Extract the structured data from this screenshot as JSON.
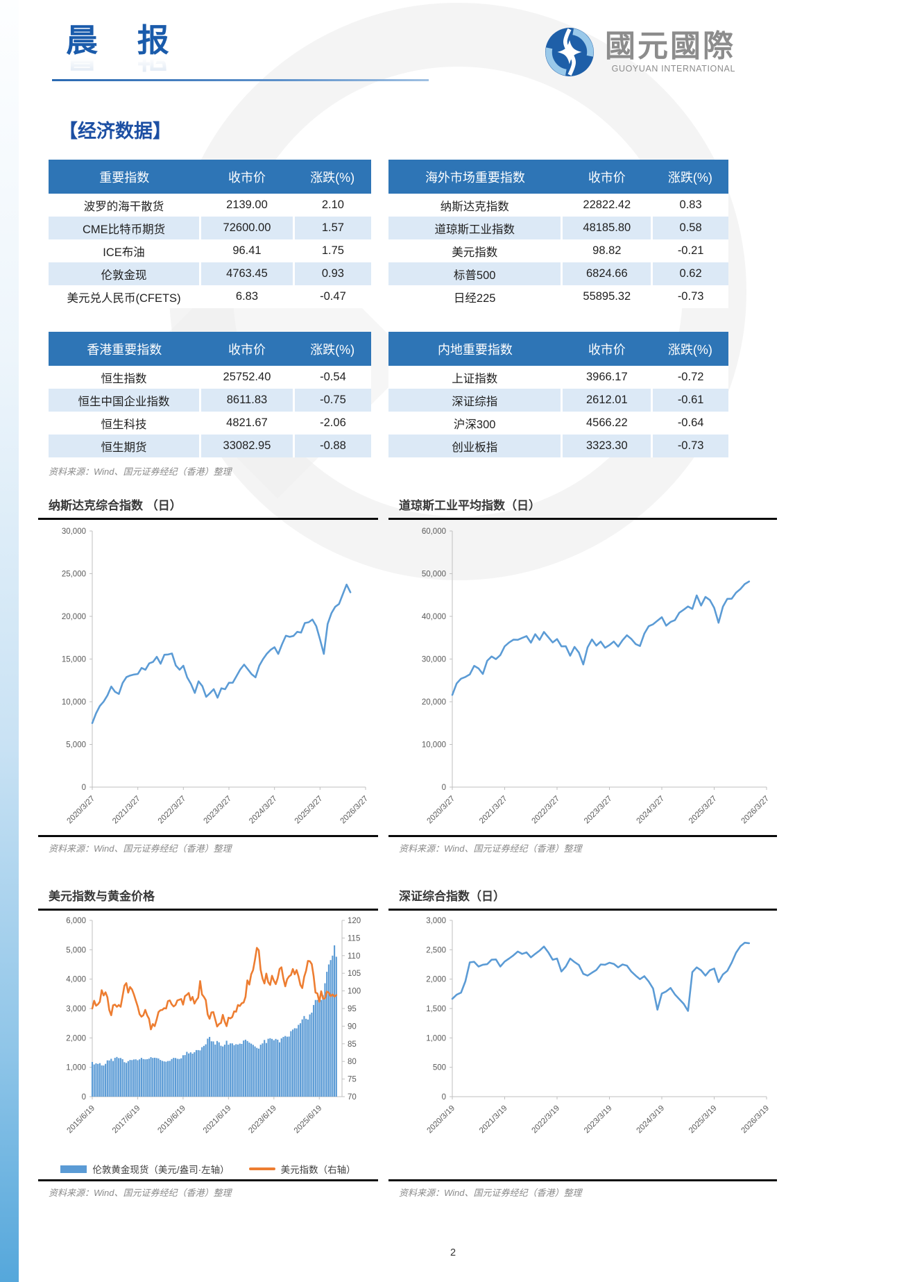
{
  "page_number": "2",
  "header": {
    "title": "晨 报",
    "brand_cn": "國元國際",
    "brand_en": "GUOYUAN INTERNATIONAL"
  },
  "section_title": "【经济数据】",
  "source_note": "资料来源：Wind、国元证券经纪（香港）整理",
  "colors": {
    "table_header": "#2E75B6",
    "table_row_alt": "#DCE9F6",
    "line_blue": "#5B9BD5",
    "line_orange": "#ED7D31",
    "accent_blue": "#1A5BAB"
  },
  "tables": [
    {
      "name": "important-indices",
      "headers": [
        "重要指数",
        "收市价",
        "涨跌(%)"
      ],
      "rows": [
        [
          "波罗的海干散货",
          "2139.00",
          "2.10"
        ],
        [
          "CME比特币期货",
          "72600.00",
          "1.57"
        ],
        [
          "ICE布油",
          "96.41",
          "1.75"
        ],
        [
          "伦敦金现",
          "4763.45",
          "0.93"
        ],
        [
          "美元兑人民币(CFETS)",
          "6.83",
          "-0.47"
        ]
      ]
    },
    {
      "name": "overseas-indices",
      "headers": [
        "海外市场重要指数",
        "收市价",
        "涨跌(%)"
      ],
      "rows": [
        [
          "纳斯达克指数",
          "22822.42",
          "0.83"
        ],
        [
          "道琼斯工业指数",
          "48185.80",
          "0.58"
        ],
        [
          "美元指数",
          "98.82",
          "-0.21"
        ],
        [
          "标普500",
          "6824.66",
          "0.62"
        ],
        [
          "日经225",
          "55895.32",
          "-0.73"
        ]
      ]
    },
    {
      "name": "hk-indices",
      "headers": [
        "香港重要指数",
        "收市价",
        "涨跌(%)"
      ],
      "rows": [
        [
          "恒生指数",
          "25752.40",
          "-0.54"
        ],
        [
          "恒生中国企业指数",
          "8611.83",
          "-0.75"
        ],
        [
          "恒生科技",
          "4821.67",
          "-2.06"
        ],
        [
          "恒生期货",
          "33082.95",
          "-0.88"
        ]
      ]
    },
    {
      "name": "mainland-indices",
      "headers": [
        "内地重要指数",
        "收市价",
        "涨跌(%)"
      ],
      "rows": [
        [
          "上证指数",
          "3966.17",
          "-0.72"
        ],
        [
          "深证综指",
          "2612.01",
          "-0.61"
        ],
        [
          "沪深300",
          "4566.22",
          "-0.64"
        ],
        [
          "创业板指",
          "3323.30",
          "-0.73"
        ]
      ]
    }
  ],
  "chart_data": [
    {
      "type": "line",
      "title": "纳斯达克综合指数 （日）",
      "x_tick_labels": [
        "2020/3/27",
        "2021/3/27",
        "2022/3/27",
        "2023/3/27",
        "2024/3/27",
        "2025/3/27",
        "2026/3/27"
      ],
      "x_axis_months": 72,
      "x_tick_every_months": 12,
      "axes": {
        "left": {
          "ylim": [
            0,
            30000
          ],
          "yticks": [
            0,
            5000,
            10000,
            15000,
            20000,
            25000,
            30000
          ]
        }
      },
      "series": [
        {
          "name": "纳斯达克综合指数",
          "type": "line",
          "axis": "left",
          "color": "#5B9BD5",
          "sampling": "monthly",
          "start": "2020/03",
          "end": "2025/11",
          "values": [
            7500,
            8650,
            9500,
            10020,
            10750,
            11780,
            11170,
            10910,
            12200,
            12890,
            13070,
            13190,
            13250,
            13960,
            13750,
            14500,
            14670,
            15260,
            14450,
            15500,
            15540,
            15650,
            14240,
            13750,
            14220,
            12850,
            12080,
            11030,
            12390,
            11820,
            10580,
            11000,
            11470,
            10470,
            11580,
            11460,
            12220,
            12230,
            13000,
            13790,
            14350,
            13790,
            13220,
            12850,
            14230,
            15010,
            15630,
            16090,
            16380,
            15600,
            16740,
            17730,
            17600,
            17710,
            18190,
            18100,
            19220,
            19310,
            19630,
            18850,
            17300,
            15600,
            19110,
            20370,
            21120,
            21450,
            22600,
            23720,
            22820
          ]
        }
      ]
    },
    {
      "type": "line",
      "title": "道琼斯工业平均指数（日）",
      "x_tick_labels": [
        "2020/3/27",
        "2021/3/27",
        "2022/3/27",
        "2023/3/27",
        "2024/3/27",
        "2025/3/27",
        "2026/3/27"
      ],
      "x_axis_months": 72,
      "x_tick_every_months": 12,
      "axes": {
        "left": {
          "ylim": [
            0,
            60000
          ],
          "yticks": [
            0,
            10000,
            20000,
            30000,
            40000,
            50000,
            60000
          ]
        }
      },
      "series": [
        {
          "name": "道琼斯工业平均指数",
          "type": "line",
          "axis": "left",
          "color": "#5B9BD5",
          "sampling": "monthly",
          "start": "2020/03",
          "end": "2025/11",
          "values": [
            21600,
            24300,
            25400,
            25800,
            26400,
            28400,
            27800,
            26500,
            29600,
            30600,
            29980,
            30930,
            32980,
            33870,
            34530,
            34500,
            34935,
            35360,
            33845,
            35820,
            34485,
            36340,
            35130,
            33890,
            34680,
            32977,
            32990,
            30775,
            32845,
            31510,
            28725,
            32730,
            34590,
            33150,
            34086,
            32650,
            33275,
            34098,
            32910,
            34408,
            35560,
            34720,
            33508,
            33053,
            35950,
            37690,
            38150,
            38996,
            39807,
            37815,
            38686,
            39119,
            40843,
            41563,
            42330,
            41763,
            44910,
            42544,
            44545,
            43840,
            42000,
            38500,
            42270,
            44095,
            44130,
            45545,
            46400,
            47560,
            48186
          ]
        }
      ]
    },
    {
      "type": "combo",
      "title": "美元指数与黄金价格",
      "x_tick_labels": [
        "2015/6/19",
        "2017/6/19",
        "2019/6/19",
        "2021/6/19",
        "2023/6/19",
        "2025/6/19"
      ],
      "x_axis_months": 132,
      "x_tick_every_months": 24,
      "axes": {
        "left": {
          "ylim": [
            0,
            6000
          ],
          "yticks": [
            0,
            1000,
            2000,
            3000,
            4000,
            5000,
            6000
          ]
        },
        "right": {
          "ylim": [
            70,
            120
          ],
          "yticks": [
            70,
            75,
            80,
            85,
            90,
            95,
            100,
            105,
            110,
            115,
            120
          ]
        }
      },
      "legend": [
        {
          "label": "伦敦黄金现货（美元/盎司·左轴）",
          "color": "#5B9BD5",
          "shape": "bar"
        },
        {
          "label": "美元指数（右轴）",
          "color": "#ED7D31",
          "shape": "line"
        }
      ],
      "series": [
        {
          "name": "伦敦黄金现货（美元/盎司·左轴）",
          "type": "bar",
          "axis": "left",
          "color": "#5B9BD5",
          "sampling": "monthly",
          "start": "2015/06",
          "end": "2026/03",
          "values": [
            1180,
            1095,
            1135,
            1115,
            1140,
            1065,
            1060,
            1118,
            1235,
            1233,
            1290,
            1215,
            1320,
            1350,
            1310,
            1316,
            1275,
            1175,
            1150,
            1210,
            1250,
            1245,
            1265,
            1270,
            1240,
            1270,
            1320,
            1280,
            1270,
            1275,
            1295,
            1345,
            1318,
            1325,
            1315,
            1300,
            1250,
            1220,
            1200,
            1190,
            1215,
            1220,
            1280,
            1320,
            1315,
            1290,
            1283,
            1305,
            1410,
            1415,
            1525,
            1472,
            1510,
            1465,
            1515,
            1585,
            1585,
            1575,
            1685,
            1730,
            1780,
            1975,
            2035,
            1885,
            1880,
            1775,
            1895,
            1850,
            1735,
            1710,
            1770,
            1905,
            1770,
            1815,
            1815,
            1755,
            1785,
            1775,
            1805,
            1795,
            1910,
            1940,
            1895,
            1840,
            1805,
            1765,
            1710,
            1660,
            1635,
            1770,
            1815,
            1930,
            1825,
            1970,
            1990,
            1965,
            1920,
            1965,
            1940,
            1850,
            1985,
            2035,
            2065,
            2040,
            2045,
            2230,
            2285,
            2330,
            2325,
            2445,
            2500,
            2630,
            2745,
            2650,
            2625,
            2800,
            2860,
            3120,
            3290,
            3290,
            3300,
            3290,
            3450,
            3860,
            4250,
            4500,
            4650,
            4800,
            5150,
            4763
          ]
        },
        {
          "name": "美元指数（右轴）",
          "type": "line",
          "axis": "right",
          "color": "#ED7D31",
          "sampling": "monthly",
          "start": "2015/06",
          "end": "2026/03",
          "values": [
            95.0,
            97.2,
            95.8,
            96.2,
            96.9,
            100.2,
            98.7,
            99.6,
            98.2,
            94.6,
            93.1,
            95.9,
            96.1,
            95.5,
            96.0,
            95.5,
            98.4,
            101.5,
            102.2,
            99.5,
            101.1,
            100.4,
            99.0,
            97.3,
            95.6,
            93.4,
            92.7,
            93.1,
            94.6,
            93.1,
            92.1,
            89.1,
            90.6,
            90.0,
            91.8,
            94.0,
            94.5,
            94.6,
            95.1,
            95.0,
            97.1,
            97.3,
            96.2,
            95.6,
            96.0,
            97.3,
            97.5,
            97.7,
            96.1,
            98.5,
            98.9,
            99.4,
            97.3,
            98.3,
            96.4,
            97.4,
            98.1,
            102.8,
            99.0,
            98.3,
            97.4,
            93.3,
            92.1,
            93.9,
            94.0,
            91.9,
            89.9,
            90.6,
            90.9,
            93.2,
            91.3,
            90.0,
            92.4,
            92.2,
            92.6,
            94.2,
            94.1,
            96.0,
            95.7,
            96.5,
            96.7,
            98.3,
            103.0,
            101.8,
            104.7,
            105.9,
            108.8,
            112.2,
            111.5,
            106.0,
            103.5,
            102.1,
            104.9,
            102.5,
            101.7,
            104.3,
            102.9,
            101.9,
            103.6,
            106.2,
            106.7,
            103.5,
            101.3,
            103.3,
            104.1,
            104.5,
            106.2,
            104.7,
            105.9,
            104.1,
            101.7,
            100.8,
            104.0,
            105.7,
            108.5,
            108.4,
            107.6,
            104.2,
            99.5,
            99.3,
            96.9,
            99.9,
            97.8,
            97.9,
            99.8,
            99.5,
            98.5,
            99.0,
            98.4,
            98.8
          ]
        }
      ]
    },
    {
      "type": "line",
      "title": "深证综合指数（日）",
      "x_tick_labels": [
        "2020/3/19",
        "2021/3/19",
        "2022/3/19",
        "2023/3/19",
        "2024/3/19",
        "2025/3/19",
        "2026/3/19"
      ],
      "x_axis_months": 72,
      "x_tick_every_months": 12,
      "axes": {
        "left": {
          "ylim": [
            0,
            3000
          ],
          "yticks": [
            0,
            500,
            1000,
            1500,
            2000,
            2500,
            3000
          ]
        }
      },
      "series": [
        {
          "name": "深证综合指数",
          "type": "line",
          "axis": "left",
          "color": "#5B9BD5",
          "sampling": "monthly",
          "start": "2020/03",
          "end": "2025/11",
          "values": [
            1665,
            1735,
            1770,
            1965,
            2285,
            2295,
            2215,
            2245,
            2255,
            2330,
            2335,
            2215,
            2300,
            2350,
            2405,
            2470,
            2430,
            2455,
            2370,
            2430,
            2485,
            2555,
            2455,
            2330,
            2350,
            2130,
            2215,
            2350,
            2290,
            2240,
            2090,
            2060,
            2110,
            2155,
            2250,
            2245,
            2280,
            2260,
            2200,
            2250,
            2230,
            2130,
            2060,
            2000,
            2050,
            1960,
            1840,
            1480,
            1755,
            1790,
            1850,
            1740,
            1660,
            1580,
            1460,
            2120,
            2200,
            2150,
            2060,
            2150,
            2180,
            1950,
            2080,
            2140,
            2280,
            2450,
            2560,
            2620,
            2612
          ]
        }
      ]
    }
  ]
}
